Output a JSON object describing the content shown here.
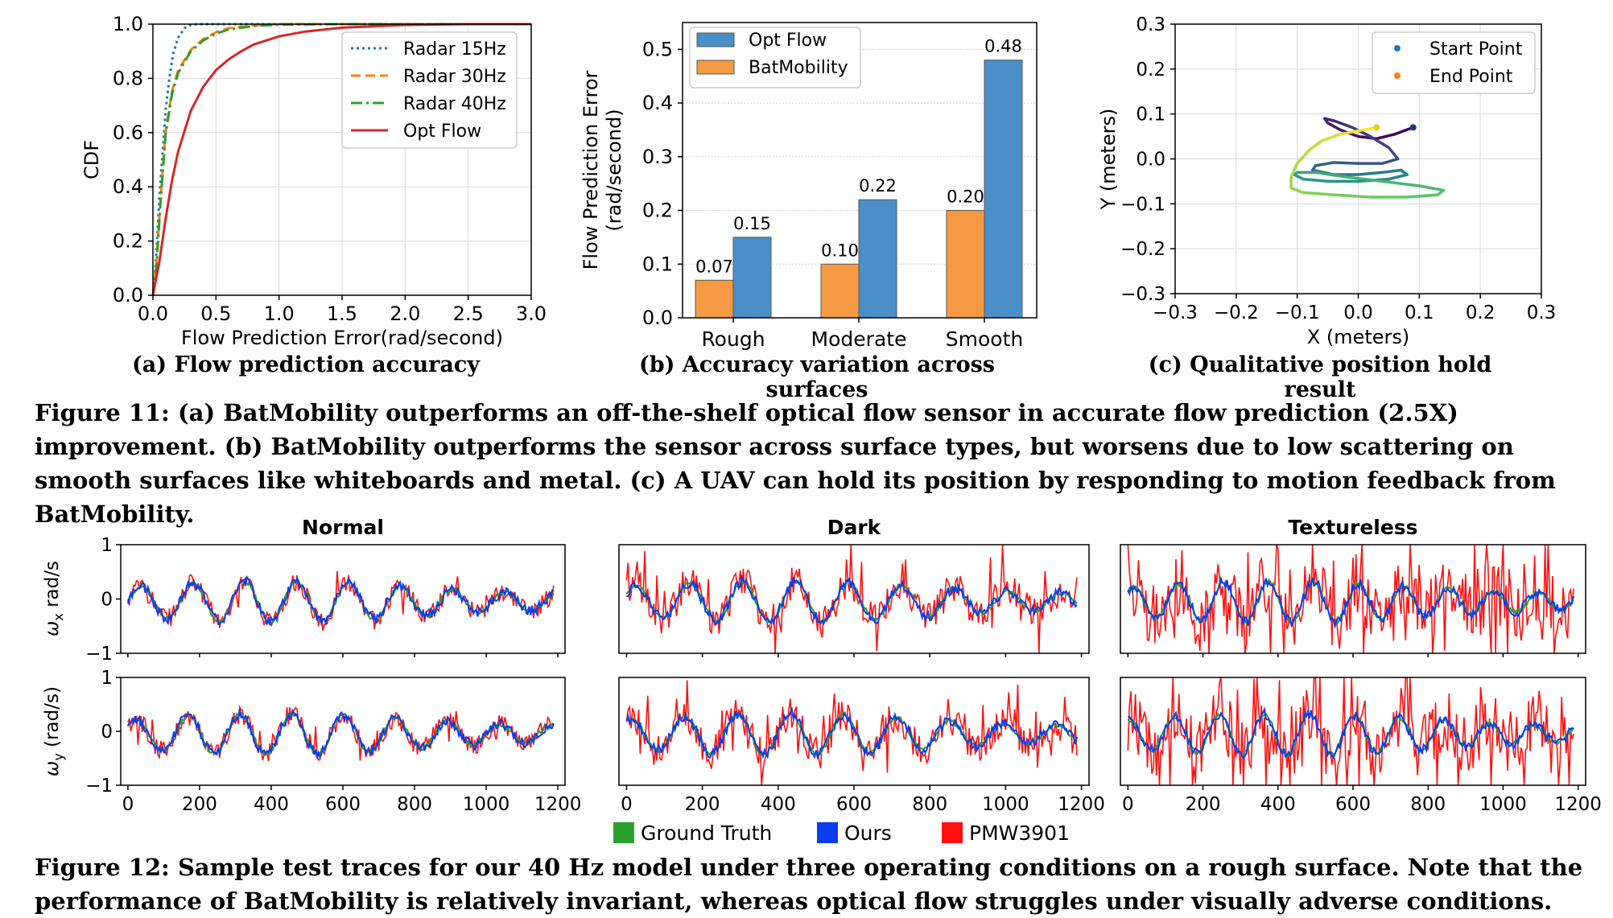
{
  "figure11": {
    "a": {
      "caption": "(a) Flow prediction accuracy",
      "chart_data": {
        "type": "line",
        "xlabel": "Flow Prediction Error(rad/second)",
        "ylabel": "CDF",
        "xlim": [
          0,
          3.0
        ],
        "ylim": [
          0,
          1.0
        ],
        "xticks": [
          "0.0",
          "0.5",
          "1.0",
          "1.5",
          "2.0",
          "2.5",
          "3.0"
        ],
        "yticks": [
          "0.0",
          "0.2",
          "0.4",
          "0.6",
          "0.8",
          "1.0"
        ],
        "legend_position": "top-right",
        "grid": true,
        "series": [
          {
            "name": "Radar 15Hz",
            "color": "#1f77b4",
            "dash": "dotted",
            "x": [
              0,
              0.02,
              0.05,
              0.08,
              0.1,
              0.13,
              0.16,
              0.2,
              0.25,
              0.3,
              0.35,
              3.0
            ],
            "y": [
              0,
              0.1,
              0.35,
              0.55,
              0.68,
              0.8,
              0.89,
              0.95,
              0.985,
              0.997,
              1.0,
              1.0
            ]
          },
          {
            "name": "Radar 30Hz",
            "color": "#ff7f0e",
            "dash": "dashed",
            "x": [
              0,
              0.03,
              0.06,
              0.1,
              0.15,
              0.2,
              0.3,
              0.4,
              0.5,
              0.6,
              0.8,
              1.0,
              1.5,
              3.0
            ],
            "y": [
              0,
              0.13,
              0.35,
              0.6,
              0.75,
              0.83,
              0.905,
              0.945,
              0.97,
              0.985,
              0.995,
              1.0,
              1.0,
              1.0
            ]
          },
          {
            "name": "Radar 40Hz",
            "color": "#2ca02c",
            "dash": "dashdot",
            "x": [
              0,
              0.03,
              0.06,
              0.1,
              0.15,
              0.2,
              0.3,
              0.4,
              0.5,
              0.6,
              0.8,
              1.0,
              1.5,
              3.0
            ],
            "y": [
              0,
              0.12,
              0.34,
              0.59,
              0.74,
              0.82,
              0.9,
              0.94,
              0.965,
              0.98,
              0.993,
              0.998,
              1.0,
              1.0
            ]
          },
          {
            "name": "Opt Flow",
            "color": "#d62728",
            "dash": "solid",
            "x": [
              0,
              0.05,
              0.1,
              0.15,
              0.2,
              0.3,
              0.4,
              0.5,
              0.6,
              0.7,
              0.8,
              1.0,
              1.2,
              1.5,
              2.0,
              2.5,
              3.0
            ],
            "y": [
              0,
              0.12,
              0.28,
              0.42,
              0.53,
              0.68,
              0.77,
              0.83,
              0.87,
              0.9,
              0.925,
              0.955,
              0.972,
              0.987,
              0.997,
              1.0,
              1.0
            ]
          }
        ]
      }
    },
    "b": {
      "caption": "(b) Accuracy variation across surfaces",
      "chart_data": {
        "type": "bar",
        "ylabel_line1": "Flow Prediction Error",
        "ylabel_line2": "(rad/second)",
        "categories": [
          "Rough",
          "Moderate",
          "Smooth"
        ],
        "ylim": [
          0,
          0.55
        ],
        "yticks": [
          "0.0",
          "0.1",
          "0.2",
          "0.3",
          "0.4",
          "0.5"
        ],
        "legend_position": "top-left",
        "grid": true,
        "series": [
          {
            "name": "Opt Flow",
            "color": "#4a8fc7",
            "values": [
              0.15,
              0.22,
              0.48
            ],
            "labels": [
              "0.15",
              "0.22",
              "0.48"
            ]
          },
          {
            "name": "BatMobility",
            "color": "#f59a42",
            "values": [
              0.07,
              0.1,
              0.2
            ],
            "labels": [
              "0.07",
              "0.10",
              "0.20"
            ]
          }
        ]
      }
    },
    "c": {
      "caption": "(c) Qualitative position hold result",
      "chart_data": {
        "type": "scatter",
        "xlabel": "X (meters)",
        "ylabel": "Y (meters)",
        "xlim": [
          -0.3,
          0.3
        ],
        "ylim": [
          -0.3,
          0.3
        ],
        "xticks": [
          "−0.3",
          "−0.2",
          "−0.1",
          "0.0",
          "0.1",
          "0.2",
          "0.3"
        ],
        "yticks": [
          "−0.3",
          "−0.2",
          "−0.1",
          "0.0",
          "0.1",
          "0.2",
          "0.3"
        ],
        "legend_position": "top-right",
        "grid": true,
        "legend": [
          {
            "name": "Start Point",
            "color": "#1f77b4"
          },
          {
            "name": "End Point",
            "color": "#ff7f0e"
          }
        ],
        "trajectory_x": [
          0.09,
          0.06,
          0.03,
          0.0,
          -0.03,
          -0.05,
          -0.055,
          -0.04,
          -0.01,
          0.02,
          0.05,
          0.065,
          0.04,
          0.0,
          -0.04,
          -0.07,
          -0.075,
          -0.04,
          0.0,
          0.04,
          0.07,
          0.08,
          0.05,
          0.0,
          -0.05,
          -0.09,
          -0.105,
          -0.1,
          -0.07,
          -0.02,
          0.04,
          0.1,
          0.14,
          0.13,
          0.08,
          0.02,
          -0.04,
          -0.09,
          -0.11,
          -0.11,
          -0.1,
          -0.08,
          -0.06,
          -0.03,
          -0.01,
          0.01,
          0.03
        ],
        "trajectory_y": [
          0.07,
          0.055,
          0.045,
          0.05,
          0.065,
          0.08,
          0.09,
          0.085,
          0.07,
          0.05,
          0.025,
          0.0,
          -0.01,
          -0.01,
          -0.008,
          -0.015,
          -0.025,
          -0.035,
          -0.035,
          -0.03,
          -0.025,
          -0.035,
          -0.045,
          -0.05,
          -0.05,
          -0.045,
          -0.035,
          -0.03,
          -0.03,
          -0.04,
          -0.05,
          -0.06,
          -0.07,
          -0.08,
          -0.085,
          -0.085,
          -0.08,
          -0.075,
          -0.065,
          -0.04,
          -0.01,
          0.02,
          0.04,
          0.055,
          0.06,
          0.065,
          0.07
        ],
        "start_point": [
          0.09,
          0.07
        ],
        "end_point": [
          0.03,
          0.07
        ]
      }
    },
    "caption": "Figure 11: (a) BatMobility outperforms an off-the-shelf optical flow sensor in accurate flow prediction (2.5X) improvement. (b) BatMobility outperforms the sensor across surface types, but worsens due to low scattering on smooth surfaces like whiteboards and metal. (c) A UAV can hold its position by responding to motion feedback from BatMobility."
  },
  "figure12": {
    "chart_data": {
      "type": "line",
      "panels": [
        "Normal",
        "Dark",
        "Textureless"
      ],
      "rows": [
        {
          "ylabel": "ωx rad/s",
          "key": "wx"
        },
        {
          "ylabel": "ωy (rad/s)",
          "key": "wy"
        }
      ],
      "xlim": [
        0,
        1200
      ],
      "ylim": [
        -1,
        1
      ],
      "xticks": [
        "0",
        "200",
        "400",
        "600",
        "800",
        "1000",
        "1200"
      ],
      "yticks": [
        "−1",
        "0",
        "1"
      ],
      "legend_position": "bottom-center",
      "series": [
        {
          "name": "Ground Truth",
          "color": "#2ca02c"
        },
        {
          "name": "Ours",
          "color": "#0a3cf0"
        },
        {
          "name": "PMW3901",
          "color": "#ff1010"
        }
      ],
      "period_samples": [
        145,
        140,
        120
      ],
      "red_noise_level": [
        0.35,
        0.6,
        1.2
      ],
      "samples": 1190
    },
    "ylabel_wx_sym": "ω",
    "ylabel_wx_sub": "x",
    "ylabel_wx_unit": " rad/s",
    "ylabel_wy_sym": "ω",
    "ylabel_wy_sub": "y",
    "ylabel_wy_unit": " (rad/s)",
    "caption": "Figure 12: Sample test traces for our 40 Hz model under three operating conditions on a rough surface. Note that the performance of BatMobility is relatively invariant, whereas optical flow struggles under visually adverse conditions."
  }
}
